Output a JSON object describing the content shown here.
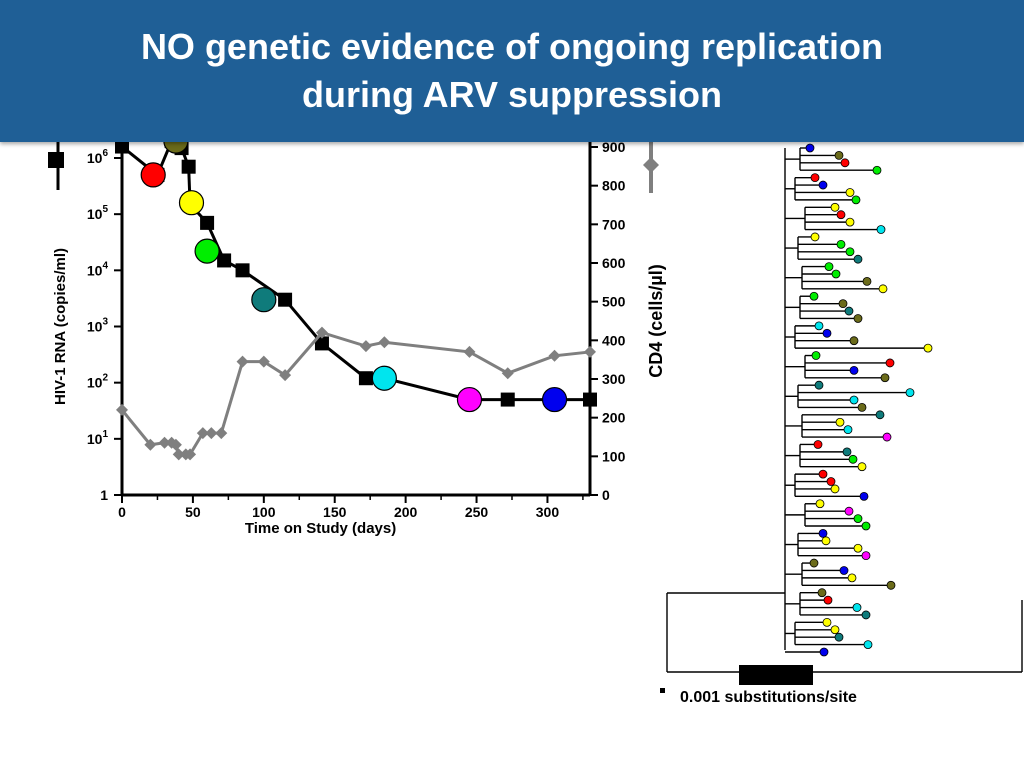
{
  "slide": {
    "title_line1": "NO genetic evidence of ongoing replication",
    "title_line2": "during ARV suppression"
  },
  "chart_data": {
    "type": "line",
    "xlabel": "Time on Study (days)",
    "ylabel_left": "HIV-1 RNA (copies/ml)",
    "ylabel_right": "CD4 (cells/µl)",
    "x_ticks": [
      0,
      50,
      100,
      150,
      200,
      250,
      300
    ],
    "xlim": [
      0,
      330
    ],
    "y_left_scale": "log",
    "y_left_ticks": [
      {
        "base": "1",
        "exp": ""
      },
      {
        "base": "10",
        "exp": "1"
      },
      {
        "base": "10",
        "exp": "2"
      },
      {
        "base": "10",
        "exp": "3"
      },
      {
        "base": "10",
        "exp": "4"
      },
      {
        "base": "10",
        "exp": "5"
      },
      {
        "base": "10",
        "exp": "6"
      }
    ],
    "y_right_ticks": [
      0,
      100,
      200,
      300,
      400,
      500,
      600,
      700,
      800,
      900
    ],
    "y_right_lim": [
      0,
      900
    ],
    "series": [
      {
        "key": "rna",
        "color": "#000000",
        "x": [
          0,
          25,
          35,
          42,
          47,
          48,
          60,
          72,
          85,
          115,
          141,
          172,
          185,
          245,
          272,
          305,
          330
        ],
        "y": [
          1600000,
          500000,
          2000000,
          1500000,
          700000,
          150000,
          70000,
          15000,
          10000,
          3000,
          500,
          120,
          120,
          50,
          50,
          50,
          50
        ]
      },
      {
        "key": "cd4",
        "color": "#7f7f7f",
        "x": [
          0,
          20,
          30,
          35,
          38,
          40,
          45,
          48,
          57,
          63,
          70,
          85,
          100,
          115,
          141,
          172,
          185,
          245,
          272,
          305,
          330
        ],
        "y": [
          220,
          130,
          135,
          135,
          130,
          105,
          105,
          105,
          160,
          160,
          160,
          345,
          345,
          310,
          420,
          385,
          395,
          370,
          315,
          360,
          370
        ]
      }
    ],
    "markers": [
      {
        "x": 22,
        "y": 500000,
        "color": "#ff0000"
      },
      {
        "x": 38,
        "y": 2000000,
        "color": "#6b6b1a"
      },
      {
        "x": 49,
        "y": 160000,
        "color": "#ffff00"
      },
      {
        "x": 60,
        "y": 22000,
        "color": "#00ee00"
      },
      {
        "x": 100,
        "y": 3000,
        "color": "#0f7b7b"
      },
      {
        "x": 185,
        "y": 120,
        "color": "#00e5ee"
      },
      {
        "x": 245,
        "y": 50,
        "color": "#ff00ff"
      },
      {
        "x": 305,
        "y": 50,
        "color": "#0000ee"
      }
    ]
  },
  "tree": {
    "scale_label": "0.001 substitutions/site",
    "leaf_colors": [
      "#0000ee",
      "#6b6b1a",
      "#ff0000",
      "#00ee00",
      "#ff0000",
      "#0000ee",
      "#ffff00",
      "#00ee00",
      "#ffff00",
      "#ff0000",
      "#ffff00",
      "#00e5ee",
      "#ffff00",
      "#00ee00",
      "#00ee00",
      "#0f7b7b",
      "#00ee00",
      "#00ee00",
      "#6b6b1a",
      "#ffff00",
      "#00ee00",
      "#6b6b1a",
      "#0f7b7b",
      "#6b6b1a",
      "#00e5ee",
      "#0000ee",
      "#6b6b1a",
      "#ffff00",
      "#00ee00",
      "#ff0000",
      "#0000ee",
      "#6b6b1a",
      "#0f7b7b",
      "#00e5ee",
      "#00e5ee",
      "#6b6b1a",
      "#0f7b7b",
      "#ffff00",
      "#00e5ee",
      "#ff00ff",
      "#ff0000",
      "#0f7b7b",
      "#00ee00",
      "#ffff00",
      "#ff0000",
      "#ff0000",
      "#ffff00",
      "#0000ee",
      "#ffff00",
      "#ff00ff",
      "#00ee00",
      "#00ee00",
      "#0000ee",
      "#ffff00",
      "#ffff00",
      "#ff00ff",
      "#6b6b1a",
      "#0000ee",
      "#ffff00",
      "#6b6b1a",
      "#6b6b1a",
      "#ff0000",
      "#00e5ee",
      "#0f7b7b",
      "#ffff00",
      "#ffff00",
      "#0f7b7b",
      "#00e5ee",
      "#0000ee"
    ]
  }
}
